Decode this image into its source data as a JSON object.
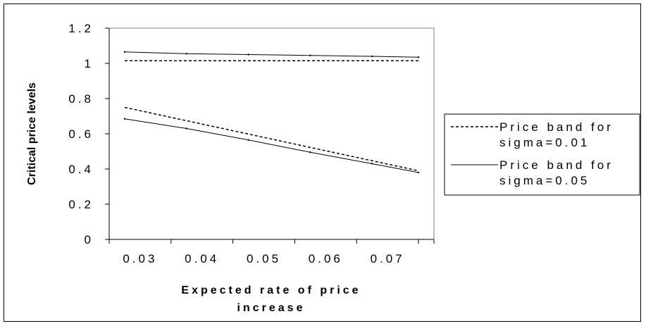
{
  "chart_data": {
    "type": "line",
    "title": "",
    "xlabel": "Expected rate of price increase",
    "xlabel_lines": [
      "Expected rate of price",
      "increase"
    ],
    "ylabel": "Critical price levels",
    "xlim": [
      0.025,
      0.0775
    ],
    "ylim": [
      0,
      1.2
    ],
    "xticks": [
      0.03,
      0.04,
      0.05,
      0.06,
      0.07
    ],
    "xtick_labels": [
      "0.03",
      "0.04",
      "0.05",
      "0.06",
      "0.07"
    ],
    "yticks": [
      0,
      0.2,
      0.4,
      0.6,
      0.8,
      1,
      1.2
    ],
    "ytick_labels": [
      "0",
      "0.2",
      "0.4",
      "0.6",
      "0.8",
      "1",
      "1.2"
    ],
    "grid": false,
    "legend_position": "right",
    "legend": [
      {
        "lines": [
          "Price band for",
          "sigma=0.01"
        ],
        "style": "dashed"
      },
      {
        "lines": [
          "Price band for",
          "sigma=0.05"
        ],
        "style": "solid"
      }
    ],
    "series": [
      {
        "style": "dashed",
        "band": "upper",
        "x": [
          0.0275,
          0.075
        ],
        "y": [
          1.015,
          1.015
        ]
      },
      {
        "style": "dashed",
        "band": "lower",
        "x": [
          0.0275,
          0.075
        ],
        "y": [
          0.75,
          0.39
        ]
      },
      {
        "style": "solid",
        "band": "upper",
        "x": [
          0.0275,
          0.0375,
          0.0475,
          0.0575,
          0.0675,
          0.075
        ],
        "y": [
          1.065,
          1.055,
          1.05,
          1.045,
          1.04,
          1.035
        ]
      },
      {
        "style": "solid",
        "band": "lower",
        "x": [
          0.0275,
          0.0375,
          0.0475,
          0.0575,
          0.0675,
          0.075
        ],
        "y": [
          0.685,
          0.63,
          0.565,
          0.495,
          0.43,
          0.38
        ]
      }
    ]
  }
}
